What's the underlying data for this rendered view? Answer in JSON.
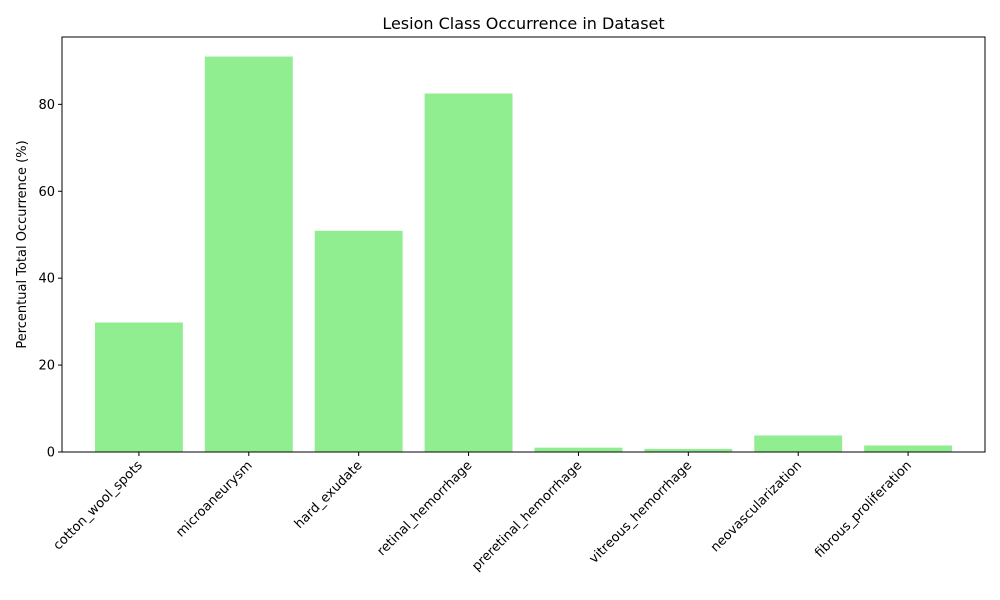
{
  "chart_data": {
    "type": "bar",
    "title": "Lesion Class Occurrence in Dataset",
    "xlabel": "",
    "ylabel": "Percentual Total Occurrence (%)",
    "categories": [
      "cotton_wool_spots",
      "microaneurysm",
      "hard_exudate",
      "retinal_hemorrhage",
      "preretinal_hemorrhage",
      "vitreous_hemorrhage",
      "neovascularization",
      "fibrous_proliferation"
    ],
    "values": [
      29.8,
      91.0,
      50.9,
      82.5,
      1.0,
      0.7,
      3.8,
      1.5
    ],
    "ylim": [
      0,
      95.5
    ],
    "yticks": [
      0,
      20,
      40,
      60,
      80
    ],
    "x_tick_rotation_deg": 45,
    "grid": false,
    "legend": "none",
    "bar_color": "#90ee90"
  }
}
